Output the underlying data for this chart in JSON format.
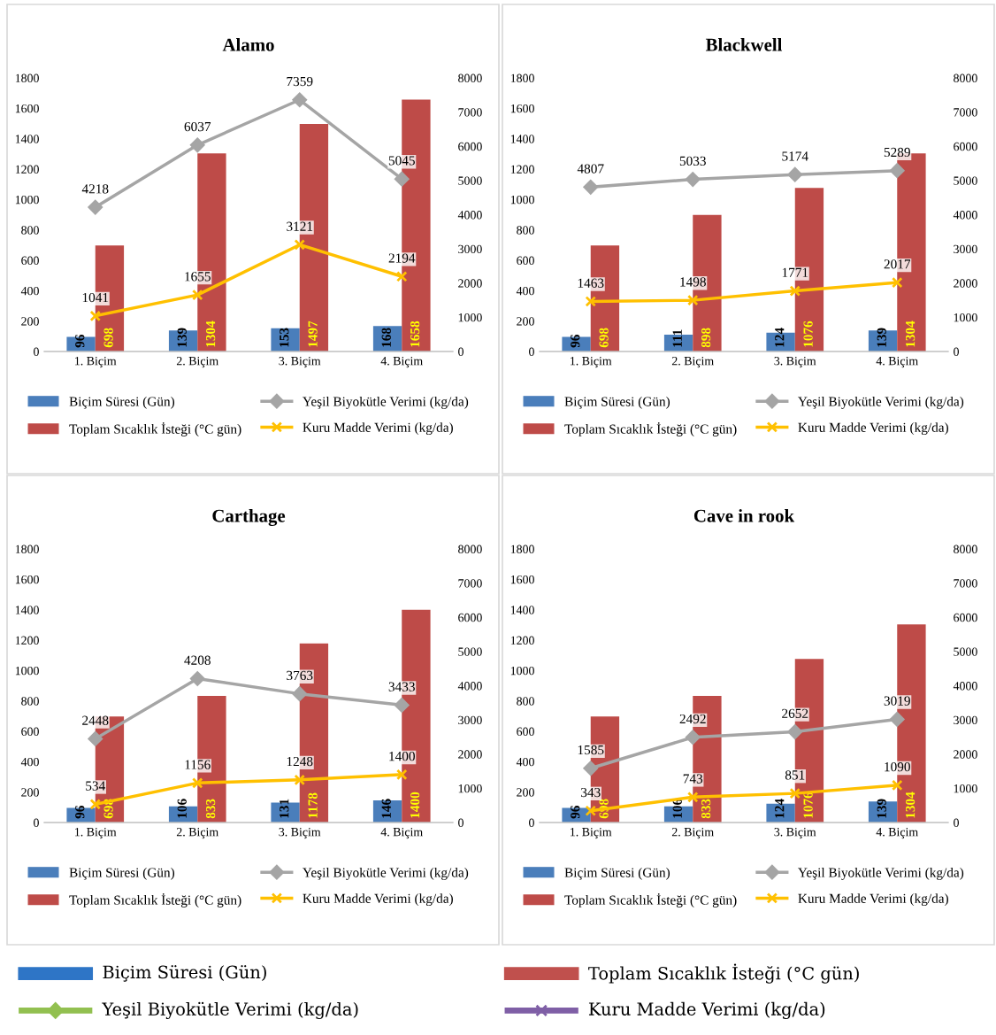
{
  "chart_data": [
    {
      "type": "bar",
      "title": "Alamo",
      "categories": [
        "1. Biçim",
        "2. Biçim",
        "3. Biçim",
        "4. Biçim"
      ],
      "ylim": [
        0,
        1800
      ],
      "yticks": [
        0,
        200,
        400,
        600,
        800,
        1000,
        1200,
        1400,
        1600,
        1800
      ],
      "y2lim": [
        0,
        8000
      ],
      "y2ticks": [
        0,
        1000,
        2000,
        3000,
        4000,
        5000,
        6000,
        7000,
        8000
      ],
      "grid": false,
      "legend": "bottom",
      "data_labels": true,
      "series": [
        {
          "name": "Biçim Süresi (Gün)",
          "color": "#4a7ebb",
          "values": [
            96,
            139,
            153,
            168
          ]
        },
        {
          "name": "Toplam Sıcaklık İsteği (°C gün)",
          "color": "#be4b48",
          "values": [
            698,
            1304,
            1497,
            1658
          ]
        },
        {
          "name": "Yeşil Biyokütle Verimi (kg/da)",
          "type": "line",
          "axis": "y2",
          "marker": "diamond",
          "color": "#a5a5a5",
          "values": [
            4218,
            6037,
            7359,
            5045
          ]
        },
        {
          "name": "Kuru Madde Verimi (kg/da)",
          "type": "line",
          "axis": "y2",
          "marker": "cross",
          "color": "#ffc000",
          "values": [
            1041,
            1655,
            3121,
            2194
          ]
        }
      ]
    },
    {
      "type": "bar",
      "title": "Blackwell",
      "categories": [
        "1. Biçim",
        "2. Biçim",
        "3. Biçim",
        "4. Biçim"
      ],
      "ylim": [
        0,
        1800
      ],
      "yticks": [
        0,
        200,
        400,
        600,
        800,
        1000,
        1200,
        1400,
        1600,
        1800
      ],
      "y2lim": [
        0,
        8000
      ],
      "y2ticks": [
        0,
        1000,
        2000,
        3000,
        4000,
        5000,
        6000,
        7000,
        8000
      ],
      "grid": false,
      "legend": "bottom",
      "data_labels": true,
      "series": [
        {
          "name": "Biçim Süresi (Gün)",
          "color": "#4a7ebb",
          "values": [
            96,
            111,
            124,
            139
          ]
        },
        {
          "name": "Toplam Sıcaklık İsteği (°C gün)",
          "color": "#be4b48",
          "values": [
            698,
            898,
            1076,
            1304
          ]
        },
        {
          "name": "Yeşil Biyokütle Verimi (kg/da)",
          "type": "line",
          "axis": "y2",
          "marker": "diamond",
          "color": "#a5a5a5",
          "values": [
            4807,
            5033,
            5174,
            5289
          ]
        },
        {
          "name": "Kuru Madde Verimi (kg/da)",
          "type": "line",
          "axis": "y2",
          "marker": "cross",
          "color": "#ffc000",
          "values": [
            1463,
            1498,
            1771,
            2017
          ]
        }
      ]
    },
    {
      "type": "bar",
      "title": "Carthage",
      "categories": [
        "1. Biçim",
        "2. Biçim",
        "3. Biçim",
        "4. Biçim"
      ],
      "ylim": [
        0,
        1800
      ],
      "yticks": [
        0,
        200,
        400,
        600,
        800,
        1000,
        1200,
        1400,
        1600,
        1800
      ],
      "y2lim": [
        0,
        8000
      ],
      "y2ticks": [
        0,
        1000,
        2000,
        3000,
        4000,
        5000,
        6000,
        7000,
        8000
      ],
      "grid": false,
      "legend": "bottom",
      "data_labels": true,
      "series": [
        {
          "name": "Biçim Süresi (Gün)",
          "color": "#4a7ebb",
          "values": [
            96,
            106,
            131,
            146
          ]
        },
        {
          "name": "Toplam Sıcaklık İsteği (°C gün)",
          "color": "#be4b48",
          "values": [
            698,
            833,
            1178,
            1400
          ]
        },
        {
          "name": "Yeşil Biyokütle Verimi (kg/da)",
          "type": "line",
          "axis": "y2",
          "marker": "diamond",
          "color": "#a5a5a5",
          "values": [
            2448,
            4208,
            3763,
            3433
          ]
        },
        {
          "name": "Kuru Madde Verimi (kg/da)",
          "type": "line",
          "axis": "y2",
          "marker": "cross",
          "color": "#ffc000",
          "values": [
            534,
            1156,
            1248,
            1400
          ]
        }
      ]
    },
    {
      "type": "bar",
      "title": "Cave in rook",
      "categories": [
        "1. Biçim",
        "2. Biçim",
        "3. Biçim",
        "4. Biçim"
      ],
      "ylim": [
        0,
        1800
      ],
      "yticks": [
        0,
        200,
        400,
        600,
        800,
        1000,
        1200,
        1400,
        1600,
        1800
      ],
      "y2lim": [
        0,
        8000
      ],
      "y2ticks": [
        0,
        1000,
        2000,
        3000,
        4000,
        5000,
        6000,
        7000,
        8000
      ],
      "grid": false,
      "legend": "bottom",
      "data_labels": true,
      "series": [
        {
          "name": "Biçim Süresi (Gün)",
          "color": "#4a7ebb",
          "values": [
            96,
            106,
            124,
            139
          ]
        },
        {
          "name": "Toplam Sıcaklık İsteği (°C gün)",
          "color": "#be4b48",
          "values": [
            698,
            833,
            1076,
            1304
          ]
        },
        {
          "name": "Yeşil Biyokütle Verimi (kg/da)",
          "type": "line",
          "axis": "y2",
          "marker": "diamond",
          "color": "#a5a5a5",
          "values": [
            1585,
            2492,
            2652,
            3019
          ]
        },
        {
          "name": "Kuru Madde Verimi (kg/da)",
          "type": "line",
          "axis": "y2",
          "marker": "cross",
          "color": "#ffc000",
          "values": [
            343,
            743,
            851,
            1090
          ]
        }
      ]
    },
    {
      "type": "other",
      "annotations": [
        "Biçim Süresi (Gün)",
        "Toplam Sıcaklık İsteği (°C gün)",
        "Yeşil Biyokütle Verimi (kg/da)",
        "Kuru Madde Verimi (kg/da)"
      ]
    }
  ]
}
